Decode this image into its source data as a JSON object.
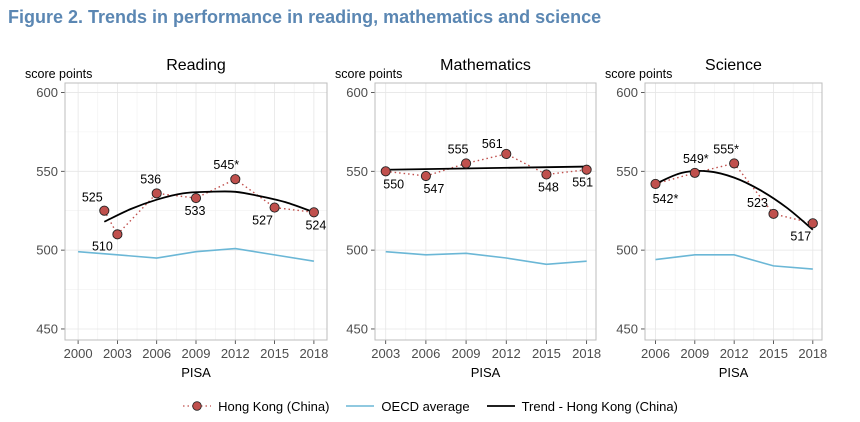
{
  "figure": {
    "title": "Figure 2. Trends in performance in reading, mathematics and science"
  },
  "chart_data": [
    {
      "type": "line",
      "title": "Reading",
      "ylabel": "score points",
      "xlabel": "PISA",
      "xlim": [
        1999,
        2019
      ],
      "ylim": [
        443,
        606
      ],
      "x_ticks": [
        2000,
        2003,
        2006,
        2009,
        2012,
        2015,
        2018
      ],
      "y_ticks": [
        450,
        500,
        550,
        600
      ],
      "grid": true,
      "series": [
        {
          "name": "Hong Kong (China)",
          "style": "points-dotted",
          "x": [
            2002,
            2003,
            2006,
            2009,
            2012,
            2015,
            2018
          ],
          "y": [
            525,
            510,
            536,
            533,
            545,
            527,
            524
          ],
          "labels": [
            "525",
            "510",
            "536",
            "533",
            "545*",
            "527",
            "524"
          ]
        },
        {
          "name": "OECD average",
          "style": "line",
          "x": [
            2000,
            2003,
            2006,
            2009,
            2012,
            2015,
            2018
          ],
          "y": [
            499,
            497,
            495,
            499,
            501,
            497,
            493
          ]
        },
        {
          "name": "Trend - Hong Kong (China)",
          "style": "curve",
          "x": [
            2002,
            2004,
            2006,
            2008,
            2010,
            2012,
            2014,
            2016,
            2018
          ],
          "y": [
            518,
            526,
            532,
            536,
            537,
            537,
            534,
            530,
            524
          ]
        }
      ]
    },
    {
      "type": "line",
      "title": "Mathematics",
      "ylabel": "score points",
      "xlabel": "PISA",
      "xlim": [
        2002.2,
        2018.7
      ],
      "ylim": [
        443,
        606
      ],
      "x_ticks": [
        2003,
        2006,
        2009,
        2012,
        2015,
        2018
      ],
      "y_ticks": [
        450,
        500,
        550,
        600
      ],
      "grid": true,
      "series": [
        {
          "name": "Hong Kong (China)",
          "style": "points-dotted",
          "x": [
            2003,
            2006,
            2009,
            2012,
            2015,
            2018
          ],
          "y": [
            550,
            547,
            555,
            561,
            548,
            551
          ],
          "labels": [
            "550",
            "547",
            "555",
            "561",
            "548",
            "551"
          ]
        },
        {
          "name": "OECD average",
          "style": "line",
          "x": [
            2003,
            2006,
            2009,
            2012,
            2015,
            2018
          ],
          "y": [
            499,
            497,
            498,
            495,
            491,
            493
          ]
        },
        {
          "name": "Trend - Hong Kong (China)",
          "style": "curve",
          "x": [
            2003,
            2018
          ],
          "y": [
            551,
            553
          ]
        }
      ]
    },
    {
      "type": "line",
      "title": "Science",
      "ylabel": "score points",
      "xlabel": "PISA",
      "xlim": [
        2005.2,
        2018.7
      ],
      "ylim": [
        443,
        606
      ],
      "x_ticks": [
        2006,
        2009,
        2012,
        2015,
        2018
      ],
      "y_ticks": [
        450,
        500,
        550,
        600
      ],
      "grid": true,
      "series": [
        {
          "name": "Hong Kong (China)",
          "style": "points-dotted",
          "x": [
            2006,
            2009,
            2012,
            2015,
            2018
          ],
          "y": [
            542,
            549,
            555,
            523,
            517
          ],
          "labels": [
            "542*",
            "549*",
            "555*",
            "523",
            "517"
          ]
        },
        {
          "name": "OECD average",
          "style": "line",
          "x": [
            2006,
            2009,
            2012,
            2015,
            2018
          ],
          "y": [
            494,
            497,
            497,
            490,
            488
          ]
        },
        {
          "name": "Trend - Hong Kong (China)",
          "style": "curve",
          "x": [
            2006,
            2008,
            2010,
            2012,
            2014,
            2016,
            2018
          ],
          "y": [
            542,
            549,
            550,
            546,
            538,
            527,
            513
          ]
        }
      ]
    }
  ],
  "legend": [
    {
      "label": "Hong Kong (China)"
    },
    {
      "label": "OECD average"
    },
    {
      "label": "Trend - Hong Kong (China)"
    }
  ],
  "colors": {
    "title": "#5b87b3",
    "hongkong": "#c0504d",
    "oecd": "#6bb7d6",
    "trend": "#000000",
    "grid": "#e6e6e6"
  }
}
